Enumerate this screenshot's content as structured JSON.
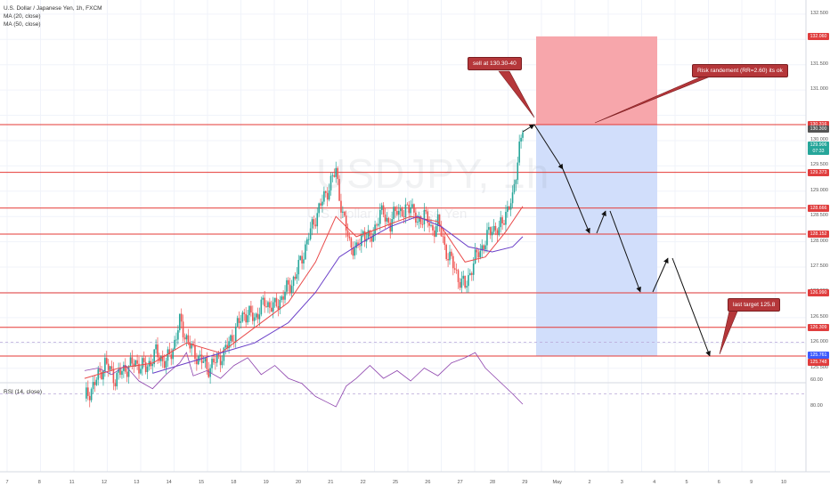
{
  "chart_data": {
    "type": "candlestick",
    "symbol": "U.S. Dollar / Japanese Yen, 1h, FXCM",
    "watermark": "USDJPY, 1h",
    "watermark_sub": "U.S. Dollar / Japanese Yen",
    "indicators": [
      "MA (20, close)",
      "MA (50, close)"
    ],
    "rsi_label": "RSI (14, close)",
    "price_ticks": [
      "132.500",
      "131.500",
      "131.000",
      "130.000",
      "129.500",
      "129.000",
      "128.500",
      "128.000",
      "127.500",
      "127.000",
      "126.500",
      "126.000",
      "125.500"
    ],
    "rsi_ticks": [
      "80.00",
      "60.00",
      "40.00"
    ],
    "x_ticks": [
      "7",
      "8",
      "11",
      "12",
      "13",
      "14",
      "15",
      "18",
      "19",
      "20",
      "21",
      "22",
      "25",
      "26",
      "27",
      "28",
      "29",
      "May",
      "2",
      "3",
      "4",
      "5",
      "6",
      "9",
      "10"
    ],
    "levels": [
      130.316,
      129.373,
      128.666,
      128.152,
      126.99,
      126.309,
      125.741
    ],
    "price_tags": [
      {
        "label": "132.060",
        "price": 132.06,
        "color": "#e03e3e"
      },
      {
        "label": "130.316",
        "price": 130.316,
        "color": "#e03e3e"
      },
      {
        "label": "130.300",
        "price": 130.23,
        "color": "#555555"
      },
      {
        "label": "129.906",
        "price": 129.906,
        "color": "#26a69a"
      },
      {
        "label": "07:33",
        "price": 129.78,
        "color": "#26a69a"
      },
      {
        "label": "129.373",
        "price": 129.373,
        "color": "#e03e3e"
      },
      {
        "label": "128.666",
        "price": 128.666,
        "color": "#e03e3e"
      },
      {
        "label": "128.152",
        "price": 128.152,
        "color": "#e03e3e"
      },
      {
        "label": "126.990",
        "price": 126.99,
        "color": "#e03e3e"
      },
      {
        "label": "126.309",
        "price": 126.309,
        "color": "#e03e3e"
      },
      {
        "label": "125.761",
        "price": 125.761,
        "color": "#3d5afe"
      },
      {
        "label": "125.748",
        "price": 125.62,
        "color": "#e03e3e"
      }
    ],
    "position": {
      "stop": 132.06,
      "entry": 130.316,
      "target": 125.741
    },
    "annotations": {
      "sell": "sell at 130.30-40",
      "risk": "Risk randement (RR=2.60) its ok",
      "target": "last target 125.8"
    },
    "price_path": [
      [
        0,
        124.9
      ],
      [
        6,
        125.2
      ],
      [
        12,
        125.6
      ],
      [
        18,
        125.3
      ],
      [
        24,
        125.5
      ],
      [
        30,
        125.6
      ],
      [
        36,
        125.5
      ],
      [
        42,
        125.8
      ],
      [
        48,
        125.6
      ],
      [
        52,
        125.9
      ],
      [
        56,
        126.4
      ],
      [
        60,
        126.1
      ],
      [
        64,
        125.8
      ],
      [
        68,
        125.7
      ],
      [
        72,
        125.5
      ],
      [
        76,
        125.6
      ],
      [
        82,
        125.8
      ],
      [
        88,
        126.2
      ],
      [
        94,
        126.6
      ],
      [
        100,
        126.5
      ],
      [
        106,
        126.8
      ],
      [
        112,
        126.7
      ],
      [
        118,
        127.0
      ],
      [
        124,
        127.3
      ],
      [
        130,
        127.9
      ],
      [
        136,
        128.5
      ],
      [
        140,
        128.8
      ],
      [
        144,
        129.1
      ],
      [
        148,
        129.4
      ],
      [
        152,
        128.5
      ],
      [
        156,
        128.0
      ],
      [
        160,
        127.8
      ],
      [
        164,
        128.2
      ],
      [
        168,
        128.0
      ],
      [
        172,
        128.4
      ],
      [
        176,
        128.6
      ],
      [
        180,
        128.3
      ],
      [
        184,
        128.7
      ],
      [
        188,
        128.5
      ],
      [
        192,
        128.8
      ],
      [
        196,
        128.3
      ],
      [
        200,
        128.6
      ],
      [
        204,
        128.2
      ],
      [
        208,
        128.4
      ],
      [
        212,
        127.9
      ],
      [
        216,
        127.6
      ],
      [
        220,
        127.3
      ],
      [
        224,
        127.1
      ],
      [
        228,
        127.5
      ],
      [
        232,
        127.8
      ],
      [
        236,
        128.0
      ],
      [
        240,
        128.3
      ],
      [
        244,
        128.2
      ],
      [
        248,
        128.6
      ],
      [
        252,
        128.8
      ],
      [
        254,
        129.4
      ],
      [
        256,
        129.9
      ],
      [
        258,
        130.2
      ]
    ],
    "ma20": [
      [
        0,
        125.3
      ],
      [
        20,
        125.5
      ],
      [
        40,
        125.6
      ],
      [
        60,
        126.0
      ],
      [
        80,
        125.8
      ],
      [
        100,
        126.3
      ],
      [
        120,
        126.8
      ],
      [
        136,
        127.6
      ],
      [
        148,
        128.5
      ],
      [
        160,
        128.1
      ],
      [
        176,
        128.3
      ],
      [
        192,
        128.5
      ],
      [
        208,
        128.4
      ],
      [
        224,
        127.6
      ],
      [
        236,
        127.7
      ],
      [
        248,
        128.2
      ],
      [
        258,
        128.7
      ]
    ],
    "ma50": [
      [
        40,
        125.4
      ],
      [
        60,
        125.6
      ],
      [
        80,
        125.8
      ],
      [
        100,
        126.0
      ],
      [
        120,
        126.4
      ],
      [
        136,
        127.0
      ],
      [
        150,
        127.7
      ],
      [
        164,
        128.0
      ],
      [
        180,
        128.3
      ],
      [
        196,
        128.5
      ],
      [
        210,
        128.3
      ],
      [
        226,
        127.9
      ],
      [
        240,
        127.8
      ],
      [
        252,
        127.9
      ],
      [
        258,
        128.1
      ]
    ],
    "rsi": [
      [
        0,
        52
      ],
      [
        8,
        50
      ],
      [
        16,
        55
      ],
      [
        24,
        48
      ],
      [
        32,
        60
      ],
      [
        40,
        66
      ],
      [
        48,
        55
      ],
      [
        56,
        46
      ],
      [
        60,
        38
      ],
      [
        64,
        56
      ],
      [
        72,
        52
      ],
      [
        80,
        58
      ],
      [
        88,
        48
      ],
      [
        96,
        42
      ],
      [
        104,
        55
      ],
      [
        112,
        48
      ],
      [
        120,
        58
      ],
      [
        128,
        62
      ],
      [
        136,
        72
      ],
      [
        142,
        76
      ],
      [
        148,
        80
      ],
      [
        154,
        64
      ],
      [
        160,
        58
      ],
      [
        168,
        48
      ],
      [
        176,
        58
      ],
      [
        184,
        52
      ],
      [
        192,
        60
      ],
      [
        200,
        50
      ],
      [
        208,
        56
      ],
      [
        216,
        46
      ],
      [
        224,
        42
      ],
      [
        230,
        38
      ],
      [
        236,
        50
      ],
      [
        244,
        60
      ],
      [
        252,
        70
      ],
      [
        258,
        78
      ]
    ]
  }
}
